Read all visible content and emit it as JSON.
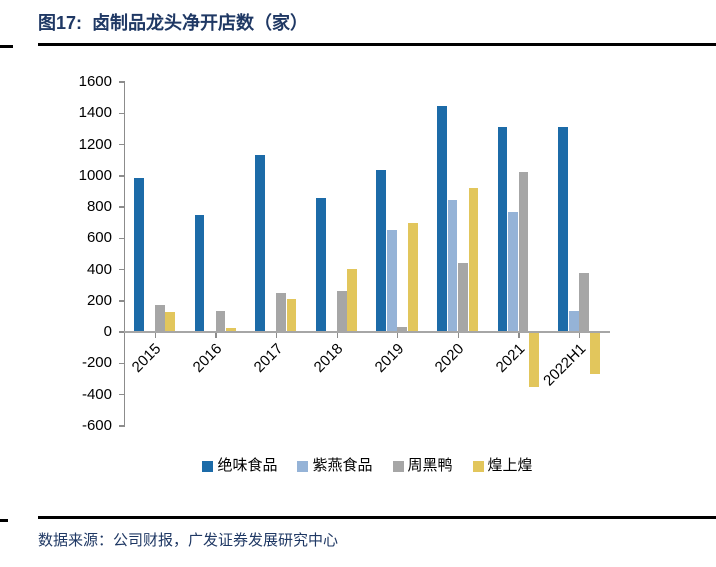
{
  "header": {
    "title": "图17:  卤制品龙头净开店数（家）"
  },
  "footer": {
    "source": "数据来源：公司财报，广发证券发展研究中心"
  },
  "accent_colors": {
    "title_navy": "#1F3864",
    "rule_black": "#000000",
    "axis_gray": "#A6A6A6"
  },
  "chart_data": {
    "type": "bar",
    "title": "卤制品龙头净开店数（家）",
    "categories": [
      "2015",
      "2016",
      "2017",
      "2018",
      "2019",
      "2020",
      "2021",
      "2022H1"
    ],
    "series": [
      {
        "name": "绝味食品",
        "color": "#1C6BA8",
        "values": [
          985,
          750,
          1130,
          860,
          1040,
          1445,
          1315,
          1310
        ]
      },
      {
        "name": "紫燕食品",
        "color": "#95B3D7",
        "values": [
          null,
          null,
          null,
          null,
          655,
          845,
          770,
          135
        ]
      },
      {
        "name": "周黑鸭",
        "color": "#A6A6A6",
        "values": [
          170,
          135,
          250,
          260,
          35,
          440,
          1026,
          380
        ]
      },
      {
        "name": "煌上煌",
        "color": "#E2C65C",
        "values": [
          128,
          25,
          210,
          405,
          700,
          920,
          -345,
          -260
        ]
      }
    ],
    "xlabel": "",
    "ylabel": "",
    "ylim": [
      -600,
      1600
    ],
    "yticks": [
      1600,
      1400,
      1200,
      1000,
      800,
      600,
      400,
      200,
      0,
      -200,
      -400,
      -600
    ],
    "grid": false,
    "legend_position": "bottom"
  }
}
